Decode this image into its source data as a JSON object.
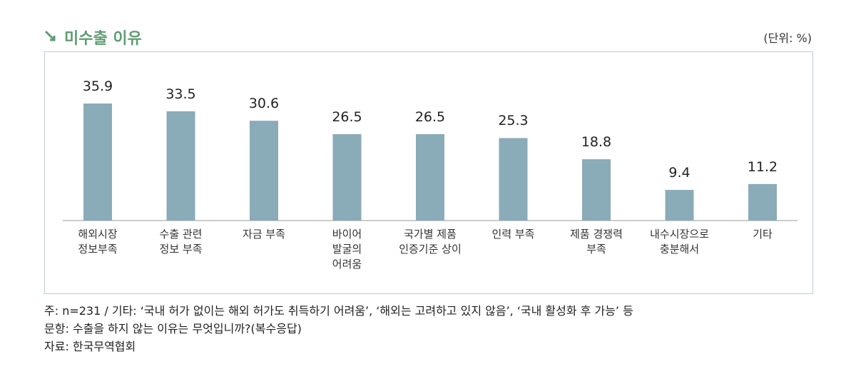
{
  "header": {
    "title": "미수출 이유",
    "unit": "(단위: %)"
  },
  "chart_data": {
    "type": "bar",
    "categories": [
      "해외시장\n정보부족",
      "수출 관련\n정보 부족",
      "자금 부족",
      "바이어\n발굴의\n어려움",
      "국가별 제품\n인증기준 상이",
      "인력 부족",
      "제품 경쟁력\n부족",
      "내수시장으로\n충분해서",
      "기타"
    ],
    "values": [
      35.9,
      33.5,
      30.6,
      26.5,
      26.5,
      25.3,
      18.8,
      9.4,
      11.2
    ],
    "color": "#8aabb8"
  },
  "notes": [
    "주: n=231 / 기타: ‘국내 허가 없이는 해외 허가도 취득하기 어려움’, ‘해외는 고려하고 있지 않음’, ‘국내 활성화 후 가능’ 등",
    "문항: 수출을 하지 않는 이유는 무엇입니까?(복수응답)",
    "자료: 한국무역협회"
  ]
}
